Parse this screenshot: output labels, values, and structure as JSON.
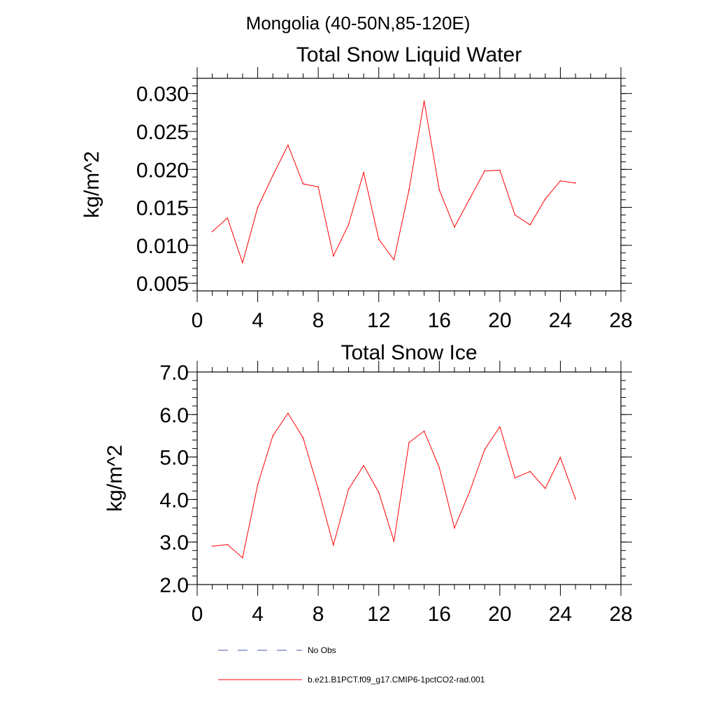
{
  "page_title": "Mongolia (40-50N,85-120E)",
  "colors": {
    "model_series": "#ff0000",
    "obs_series": "#4a5aa8",
    "axes": "#000000"
  },
  "legend": {
    "placement": "bottom",
    "entries": [
      {
        "label": "No Obs",
        "style": "dashed"
      },
      {
        "label": "b.e21.B1PCT.f09_g17.CMIP6-1pctCO2-rad.001",
        "style": "solid"
      }
    ]
  },
  "chart_data": [
    {
      "type": "line",
      "title": "Total Snow Liquid Water",
      "xlabel": "",
      "ylabel": "kg/m^2",
      "xlim": [
        0,
        28
      ],
      "ylim": [
        0.004,
        0.032
      ],
      "x_ticks": [
        0,
        4,
        8,
        12,
        16,
        20,
        24,
        28
      ],
      "x_tick_labels": [
        "0",
        "4",
        "8",
        "12",
        "16",
        "20",
        "24",
        "28"
      ],
      "y_ticks": [
        0.005,
        0.01,
        0.015,
        0.02,
        0.025,
        0.03
      ],
      "y_tick_labels": [
        "0.005",
        "0.010",
        "0.015",
        "0.020",
        "0.025",
        "0.030"
      ],
      "grid": false,
      "x": [
        1,
        2,
        3,
        4,
        5,
        6,
        7,
        8,
        9,
        10,
        11,
        12,
        13,
        14,
        15,
        16,
        17,
        18,
        19,
        20,
        21,
        22,
        23,
        24,
        25
      ],
      "series": [
        {
          "name": "b.e21.B1PCT.f09_g17.CMIP6-1pctCO2-rad.001",
          "values": [
            0.0118,
            0.0136,
            0.0077,
            0.015,
            0.0192,
            0.0232,
            0.0181,
            0.0177,
            0.0086,
            0.0127,
            0.0196,
            0.0108,
            0.0081,
            0.0173,
            0.029,
            0.0173,
            0.0124,
            0.0161,
            0.0198,
            0.0199,
            0.014,
            0.0127,
            0.0161,
            0.0185,
            0.0182
          ]
        }
      ]
    },
    {
      "type": "line",
      "title": "Total Snow Ice",
      "xlabel": "",
      "ylabel": "kg/m^2",
      "xlim": [
        0,
        28
      ],
      "ylim": [
        2.0,
        7.0
      ],
      "x_ticks": [
        0,
        4,
        8,
        12,
        16,
        20,
        24,
        28
      ],
      "x_tick_labels": [
        "0",
        "4",
        "8",
        "12",
        "16",
        "20",
        "24",
        "28"
      ],
      "y_ticks": [
        2.0,
        3.0,
        4.0,
        5.0,
        6.0,
        7.0
      ],
      "y_tick_labels": [
        "2.0",
        "3.0",
        "4.0",
        "5.0",
        "6.0",
        "7.0"
      ],
      "grid": false,
      "x": [
        1,
        2,
        3,
        4,
        5,
        6,
        7,
        8,
        9,
        10,
        11,
        12,
        13,
        14,
        15,
        16,
        17,
        18,
        19,
        20,
        21,
        22,
        23,
        24,
        25
      ],
      "series": [
        {
          "name": "b.e21.B1PCT.f09_g17.CMIP6-1pctCO2-rad.001",
          "values": [
            2.9,
            2.94,
            2.63,
            4.35,
            5.5,
            6.03,
            5.45,
            4.25,
            2.93,
            4.24,
            4.8,
            4.17,
            3.02,
            5.34,
            5.61,
            4.75,
            3.33,
            4.18,
            5.18,
            5.71,
            4.51,
            4.66,
            4.26,
            4.99,
            4.01
          ]
        }
      ]
    }
  ]
}
